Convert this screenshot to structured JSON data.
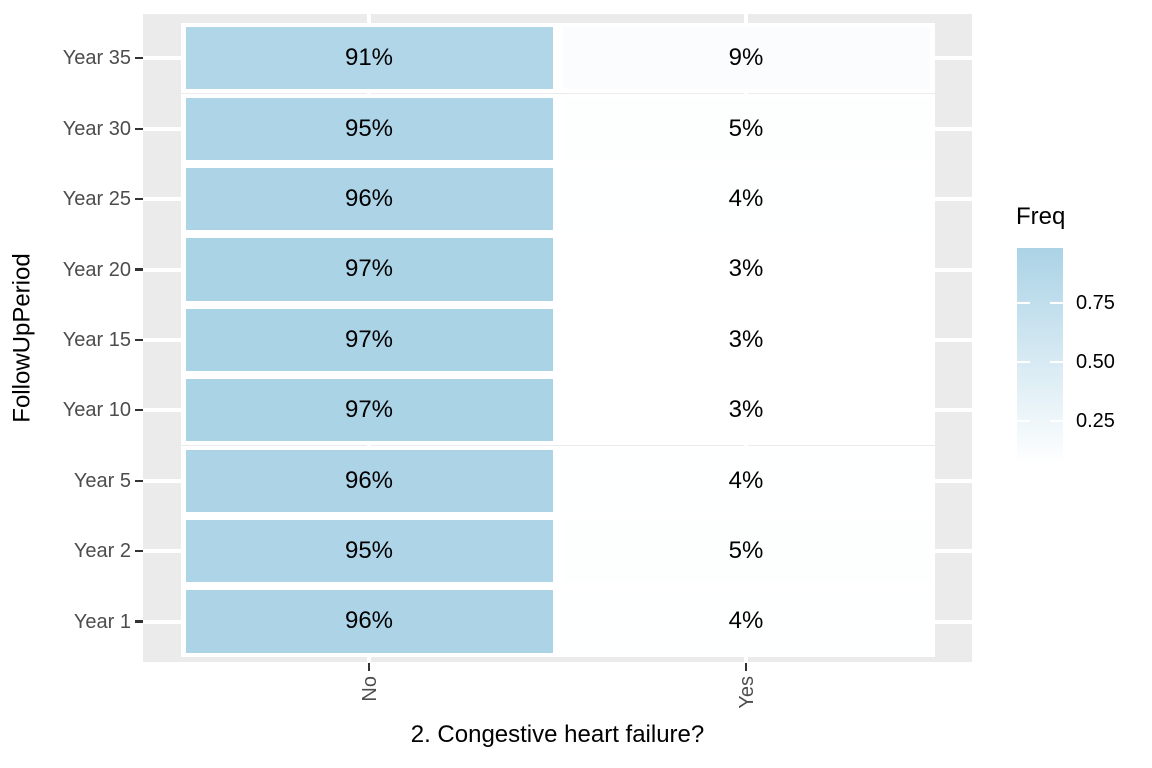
{
  "chart_data": {
    "type": "heatmap",
    "title": "",
    "xlabel": "2. Congestive heart failure?",
    "ylabel": "FollowUpPeriod",
    "x_categories": [
      "No",
      "Yes"
    ],
    "y_categories_top_to_bottom": [
      "Year 35",
      "Year 30",
      "Year 25",
      "Year 20",
      "Year 15",
      "Year 10",
      "Year 5",
      "Year 2",
      "Year 1"
    ],
    "rows": [
      {
        "y": "Year 35",
        "no": 0.91,
        "yes": 0.09,
        "no_label": "91%",
        "yes_label": "9%"
      },
      {
        "y": "Year 30",
        "no": 0.95,
        "yes": 0.05,
        "no_label": "95%",
        "yes_label": "5%"
      },
      {
        "y": "Year 25",
        "no": 0.96,
        "yes": 0.04,
        "no_label": "96%",
        "yes_label": "4%"
      },
      {
        "y": "Year 20",
        "no": 0.97,
        "yes": 0.03,
        "no_label": "97%",
        "yes_label": "3%"
      },
      {
        "y": "Year 15",
        "no": 0.97,
        "yes": 0.03,
        "no_label": "97%",
        "yes_label": "3%"
      },
      {
        "y": "Year 10",
        "no": 0.97,
        "yes": 0.03,
        "no_label": "97%",
        "yes_label": "3%"
      },
      {
        "y": "Year 5",
        "no": 0.96,
        "yes": 0.04,
        "no_label": "96%",
        "yes_label": "4%"
      },
      {
        "y": "Year 2",
        "no": 0.95,
        "yes": 0.05,
        "no_label": "95%",
        "yes_label": "5%"
      },
      {
        "y": "Year 1",
        "no": 0.96,
        "yes": 0.04,
        "no_label": "96%",
        "yes_label": "4%"
      }
    ],
    "legend": {
      "title": "Freq",
      "tick_labels": [
        "0.75",
        "0.50",
        "0.25"
      ],
      "tick_values": [
        0.75,
        0.5,
        0.25
      ],
      "range_min": 0.03,
      "range_max": 0.97
    },
    "colors": {
      "panel_bg": "#EBEBEB",
      "gridline": "#FFFFFF",
      "tile_high": "#ABD3E6",
      "tile_low": "#FFFFFF",
      "tick_label": "#4D4D4D",
      "tick_mark": "#333333",
      "title_text": "#000000",
      "value_label": "#000000"
    },
    "grid": true,
    "legend_position": "right"
  }
}
